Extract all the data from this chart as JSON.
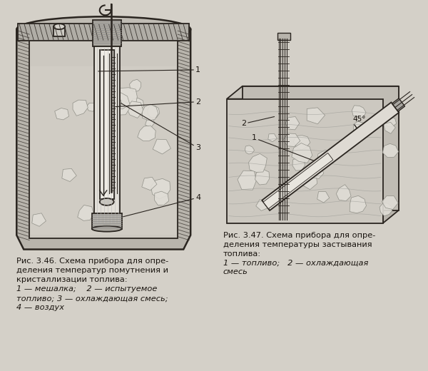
{
  "bg_color": "#d4d0c8",
  "line_color": "#2a2520",
  "hatch_color": "#3a3530",
  "text_color": "#1a1510",
  "caption1_line1": "Рис. 3.46. Схема прибора для опре-",
  "caption1_line2": "деления температур помутнения и",
  "caption1_line3": "кристаллизации топлива:",
  "caption1_line4": "1 — мешалка;    2 — испытуемое",
  "caption1_line5": "топливо; 3 — охлаждающая смесь;",
  "caption1_line6": "4 — воздух",
  "caption2_line1": "Рис. 3.47. Схема прибора для опре-",
  "caption2_line2": "деления температуры застывания",
  "caption2_line3": "топлива:",
  "caption2_line4": "1 — топливо;   2 — охлаждающая",
  "caption2_line5": "смесь",
  "label_fontsize": 8.0,
  "caption_fontsize": 8.2
}
